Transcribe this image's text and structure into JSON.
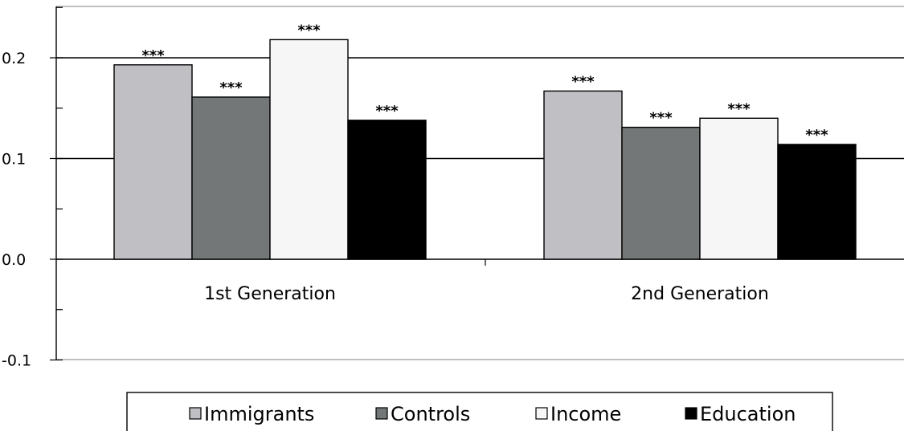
{
  "chart_data": {
    "type": "bar",
    "categories": [
      "1st Generation",
      "2nd Generation"
    ],
    "series": [
      {
        "name": "Immigrants",
        "values": [
          0.193,
          0.167
        ],
        "significance": [
          "***",
          "***"
        ],
        "color": "#c0bfc3"
      },
      {
        "name": "Controls",
        "values": [
          0.161,
          0.131
        ],
        "significance": [
          "***",
          "***"
        ],
        "color": "#737778"
      },
      {
        "name": "Income",
        "values": [
          0.218,
          0.14
        ],
        "significance": [
          "***",
          "***"
        ],
        "color": "#f6f6f6"
      },
      {
        "name": "Education",
        "values": [
          0.138,
          0.114
        ],
        "significance": [
          "***",
          "***"
        ],
        "color": "#000000"
      }
    ],
    "ylim": [
      -0.1,
      0.25
    ],
    "yticks": [
      -0.1,
      0.0,
      0.1,
      0.2
    ],
    "ytick_labels": [
      "-0.1",
      "0.0",
      "0.1",
      "0.2"
    ],
    "grid": true,
    "legend_position": "bottom",
    "title": "",
    "xlabel": "",
    "ylabel": ""
  }
}
